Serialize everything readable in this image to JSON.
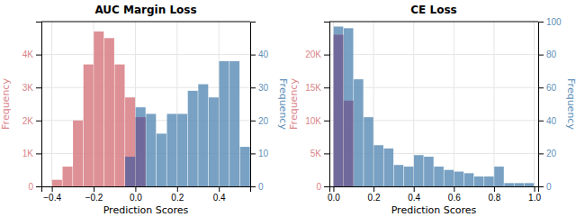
{
  "chart_data": [
    {
      "type": "bar",
      "title": "AUC Margin Loss",
      "xlabel": "Prediction Scores",
      "ylabel": "Frequency",
      "y2label": "Frequency",
      "x": [
        -0.4,
        -0.35,
        -0.3,
        -0.25,
        -0.2,
        -0.15,
        -0.1,
        -0.05,
        0.0,
        0.05,
        0.1,
        0.15,
        0.2,
        0.25,
        0.3,
        0.35,
        0.4,
        0.45,
        0.5
      ],
      "series": [
        {
          "color": "#6090b8",
          "axis": "y2",
          "values": [
            0,
            0,
            0,
            0,
            0,
            0,
            0,
            9,
            24,
            22,
            16,
            22,
            22,
            29,
            31,
            27,
            38,
            38,
            12
          ]
        },
        {
          "color": "#d9848a",
          "values": [
            200,
            600,
            2000,
            3700,
            4700,
            4500,
            3700,
            2700,
            2100,
            0,
            0,
            0,
            0,
            0,
            0,
            0,
            0,
            0,
            0
          ]
        },
        {
          "color": "#5060a0",
          "values": [
            null,
            null,
            null,
            null,
            null,
            null,
            null,
            900,
            2100,
            null,
            null,
            null,
            null,
            null,
            null,
            null,
            null,
            null,
            null
          ]
        }
      ],
      "xlim": [
        -0.45,
        0.55
      ],
      "xticks": [
        {
          "value": -0.4,
          "label": "−0.4"
        },
        {
          "value": -0.2,
          "label": "−0.2"
        },
        {
          "value": 0.0,
          "label": "0.0"
        },
        0.2,
        0.4
      ],
      "ylim": [
        0,
        5000
      ],
      "yticks": [
        0,
        {
          "value": 1000,
          "label": "1K"
        },
        {
          "value": 2000,
          "label": "2K"
        },
        {
          "value": 3000,
          "label": "3K"
        },
        {
          "value": 4000,
          "label": "4K"
        }
      ],
      "y2lim": [
        0,
        50
      ],
      "y2ticks": [
        0,
        10,
        20,
        30,
        40
      ],
      "grid": true
    },
    {
      "type": "bar",
      "title": "CE Loss",
      "xlabel": "Prediction Scores",
      "ylabel": "Frequency",
      "y2label": "Frequency",
      "x": [
        0.0,
        0.05,
        0.1,
        0.15,
        0.2,
        0.25,
        0.3,
        0.35,
        0.4,
        0.45,
        0.5,
        0.55,
        0.6,
        0.65,
        0.7,
        0.75,
        0.8,
        0.85,
        0.9,
        0.95
      ],
      "series": [
        {
          "color": "#6090b8",
          "axis": "y2",
          "values": [
            97,
            96,
            65,
            42,
            25,
            23,
            13,
            12,
            19,
            18,
            12,
            10,
            9,
            8,
            6,
            6,
            12,
            2,
            2,
            2
          ]
        },
        {
          "color": "#d9848a",
          "values": [
            23000,
            13000,
            0,
            0,
            0,
            0,
            0,
            0,
            0,
            0,
            0,
            0,
            0,
            0,
            0,
            0,
            0,
            0,
            0,
            0
          ]
        },
        {
          "color": "#5060a0",
          "values": [
            23000,
            13000,
            null,
            null,
            null,
            null,
            null,
            null,
            null,
            null,
            null,
            null,
            null,
            null,
            null,
            null,
            null,
            null,
            null,
            null
          ]
        }
      ],
      "xlim": [
        -0.02,
        1.02
      ],
      "xticks": [
        {
          "value": 0.0,
          "label": "0.0"
        },
        0.2,
        0.4,
        0.6,
        0.8,
        {
          "value": 1.0,
          "label": "1.0"
        }
      ],
      "ylim": [
        0,
        25000
      ],
      "yticks": [
        0,
        {
          "value": 5000,
          "label": "5K"
        },
        {
          "value": 10000,
          "label": "10K"
        },
        {
          "value": 15000,
          "label": "15K"
        },
        {
          "value": 20000,
          "label": "20K"
        }
      ],
      "y2lim": [
        0,
        100
      ],
      "y2ticks": [
        0,
        20,
        40,
        60,
        80,
        100
      ],
      "grid": true
    }
  ]
}
